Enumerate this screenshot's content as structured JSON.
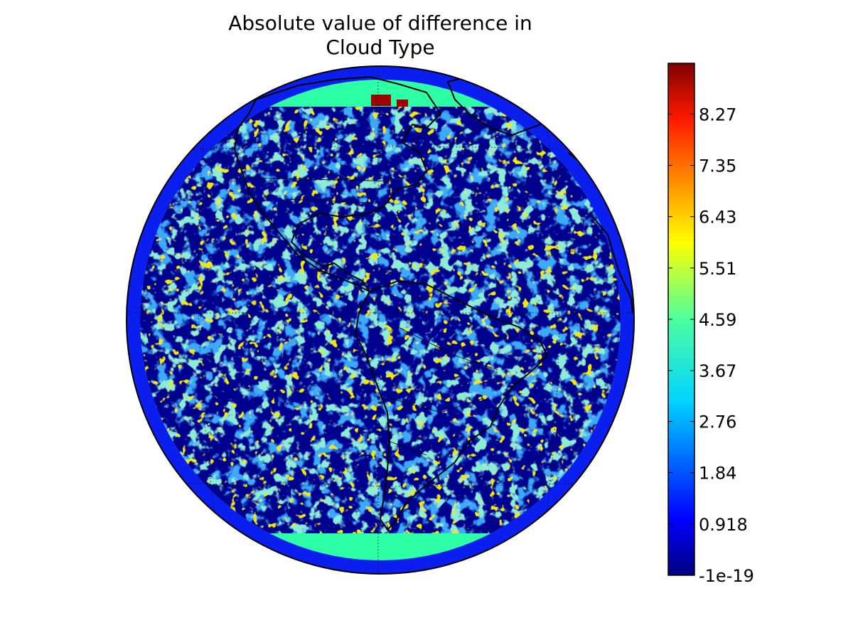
{
  "title": {
    "line1": "Absolute value of difference in",
    "line2": "Cloud Type"
  },
  "colorbar": {
    "colormap": "jet",
    "min": -1e-19,
    "max": 9.18,
    "ticks": [
      {
        "value": -1e-19,
        "label": "-1e-19"
      },
      {
        "value": 0.918,
        "label": "0.918"
      },
      {
        "value": 1.84,
        "label": "1.84"
      },
      {
        "value": 2.76,
        "label": "2.76"
      },
      {
        "value": 3.67,
        "label": "3.67"
      },
      {
        "value": 4.59,
        "label": "4.59"
      },
      {
        "value": 5.51,
        "label": "5.51"
      },
      {
        "value": 6.43,
        "label": "6.43"
      },
      {
        "value": 7.35,
        "label": "7.35"
      },
      {
        "value": 8.27,
        "label": "8.27"
      }
    ]
  },
  "map": {
    "projection": "orthographic",
    "center": "western hemisphere (Americas)",
    "background_value": 0.0,
    "limb_value": 0.918,
    "polar_cap_value": 3.67,
    "arctic_anomaly_value": 9.0,
    "coastlines": true,
    "country_borders": true,
    "graticule": "dotted"
  }
}
